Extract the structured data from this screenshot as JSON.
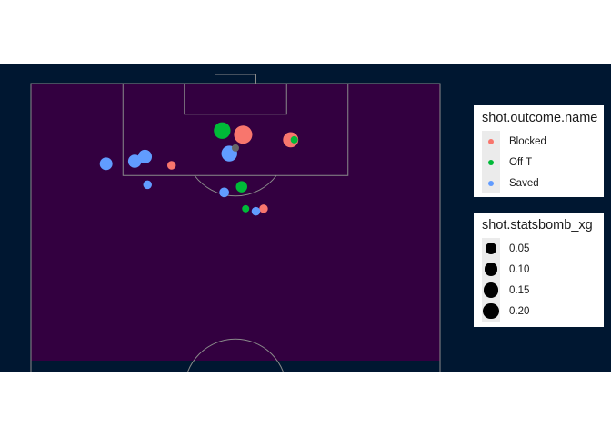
{
  "chart_data": {
    "type": "scatter",
    "pitch": {
      "length": 120,
      "width": 80,
      "view_x_range": [
        60,
        120
      ],
      "background": "#330040",
      "line_color": "#8a8a8a",
      "page_background": "#001731"
    },
    "series": [
      {
        "name": "Blocked",
        "color": "#F8766D",
        "points": [
          {
            "x": 110.0,
            "y": 41.5,
            "xg": 0.19
          },
          {
            "x": 109.0,
            "y": 50.8,
            "xg": 0.12
          },
          {
            "x": 104.0,
            "y": 27.5,
            "xg": 0.02
          },
          {
            "x": 95.5,
            "y": 45.5,
            "xg": 0.02
          }
        ]
      },
      {
        "name": "Off T",
        "color": "#00BA38",
        "points": [
          {
            "x": 110.8,
            "y": 37.4,
            "xg": 0.15
          },
          {
            "x": 109.0,
            "y": 51.5,
            "xg": 0.01
          },
          {
            "x": 99.8,
            "y": 41.2,
            "xg": 0.05
          },
          {
            "x": 95.5,
            "y": 42.0,
            "xg": 0.01
          }
        ]
      },
      {
        "name": "Saved",
        "color": "#619CFF",
        "points": [
          {
            "x": 106.3,
            "y": 38.8,
            "xg": 0.13
          },
          {
            "x": 105.7,
            "y": 22.3,
            "xg": 0.09
          },
          {
            "x": 104.8,
            "y": 20.3,
            "xg": 0.08
          },
          {
            "x": 104.3,
            "y": 14.7,
            "xg": 0.07
          },
          {
            "x": 98.7,
            "y": 37.8,
            "xg": 0.03
          },
          {
            "x": 100.2,
            "y": 22.8,
            "xg": 0.02
          },
          {
            "x": 95.0,
            "y": 44.0,
            "xg": 0.02
          }
        ]
      }
    ],
    "extra_points": [
      {
        "x": 107.4,
        "y": 40.0,
        "color": "#666666",
        "xg": 0.01
      }
    ]
  },
  "legends": {
    "outcome": {
      "title": "shot.outcome.name",
      "items": [
        {
          "label": "Blocked",
          "color": "#F8766D"
        },
        {
          "label": "Off T",
          "color": "#00BA38"
        },
        {
          "label": "Saved",
          "color": "#619CFF"
        }
      ]
    },
    "xg": {
      "title": "shot.statsbomb_xg",
      "items": [
        {
          "label": "0.05",
          "value": 0.05
        },
        {
          "label": "0.10",
          "value": 0.1
        },
        {
          "label": "0.15",
          "value": 0.15
        },
        {
          "label": "0.20",
          "value": 0.2
        }
      ]
    }
  }
}
